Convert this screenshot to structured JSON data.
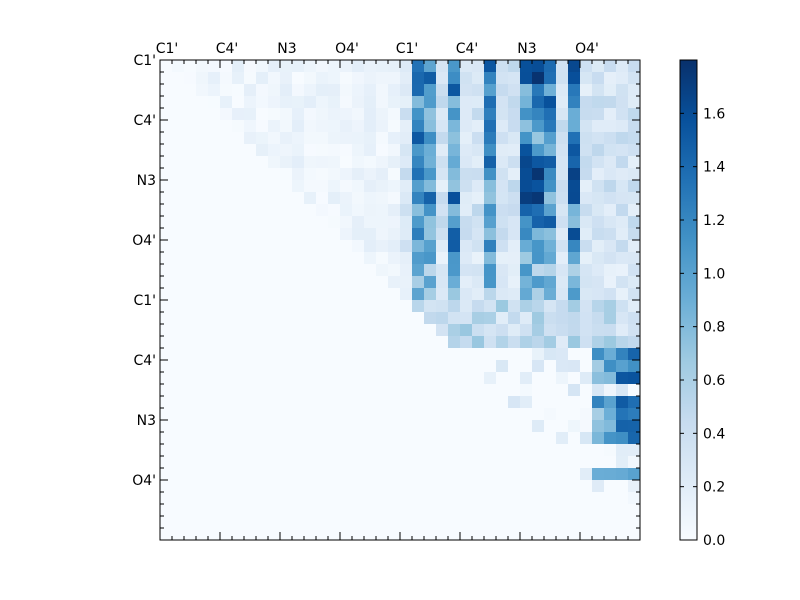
{
  "chart_data": {
    "type": "heatmap",
    "title": "",
    "xlabel": "",
    "ylabel": "",
    "grid": false,
    "x_tick_labels": [
      "C1'",
      "C4'",
      "N3",
      "O4'",
      "C1'",
      "C4'",
      "N3",
      "O4'"
    ],
    "y_tick_labels": [
      "C1'",
      "C4'",
      "N3",
      "O4'",
      "C1'",
      "C4'",
      "N3",
      "O4'"
    ],
    "colorbar": {
      "range": [
        0.0,
        1.8
      ],
      "ticks": [
        "0.0",
        "0.2",
        "0.4",
        "0.6",
        "0.8",
        "1.0",
        "1.2",
        "1.4",
        "1.6"
      ],
      "colormap": "Blues",
      "colors": [
        "#f7fbff",
        "#deebf7",
        "#c6dbef",
        "#9ecae1",
        "#6baed6",
        "#4292c6",
        "#2171b5",
        "#08519c",
        "#08306b"
      ]
    },
    "n": 40,
    "regions": [
      {
        "rows": [
          0,
          19
        ],
        "cols": [
          20,
          39
        ],
        "level": "high"
      },
      {
        "rows": [
          20,
          31
        ],
        "cols": [
          20,
          39
        ],
        "level": "mixed"
      },
      {
        "rows": [
          0,
          19
        ],
        "cols": [
          0,
          19
        ],
        "level": "low"
      },
      {
        "rows": [
          20,
          39
        ],
        "cols": [
          0,
          19
        ],
        "level": "zero"
      }
    ],
    "strong_columns": [
      21,
      22,
      24,
      27,
      30,
      31,
      32,
      34
    ],
    "right_block_columns": [
      36,
      37,
      38,
      39
    ],
    "right_block_rows": [
      24,
      25,
      26,
      28,
      29,
      30,
      31,
      34
    ],
    "max_value": 1.78
  }
}
